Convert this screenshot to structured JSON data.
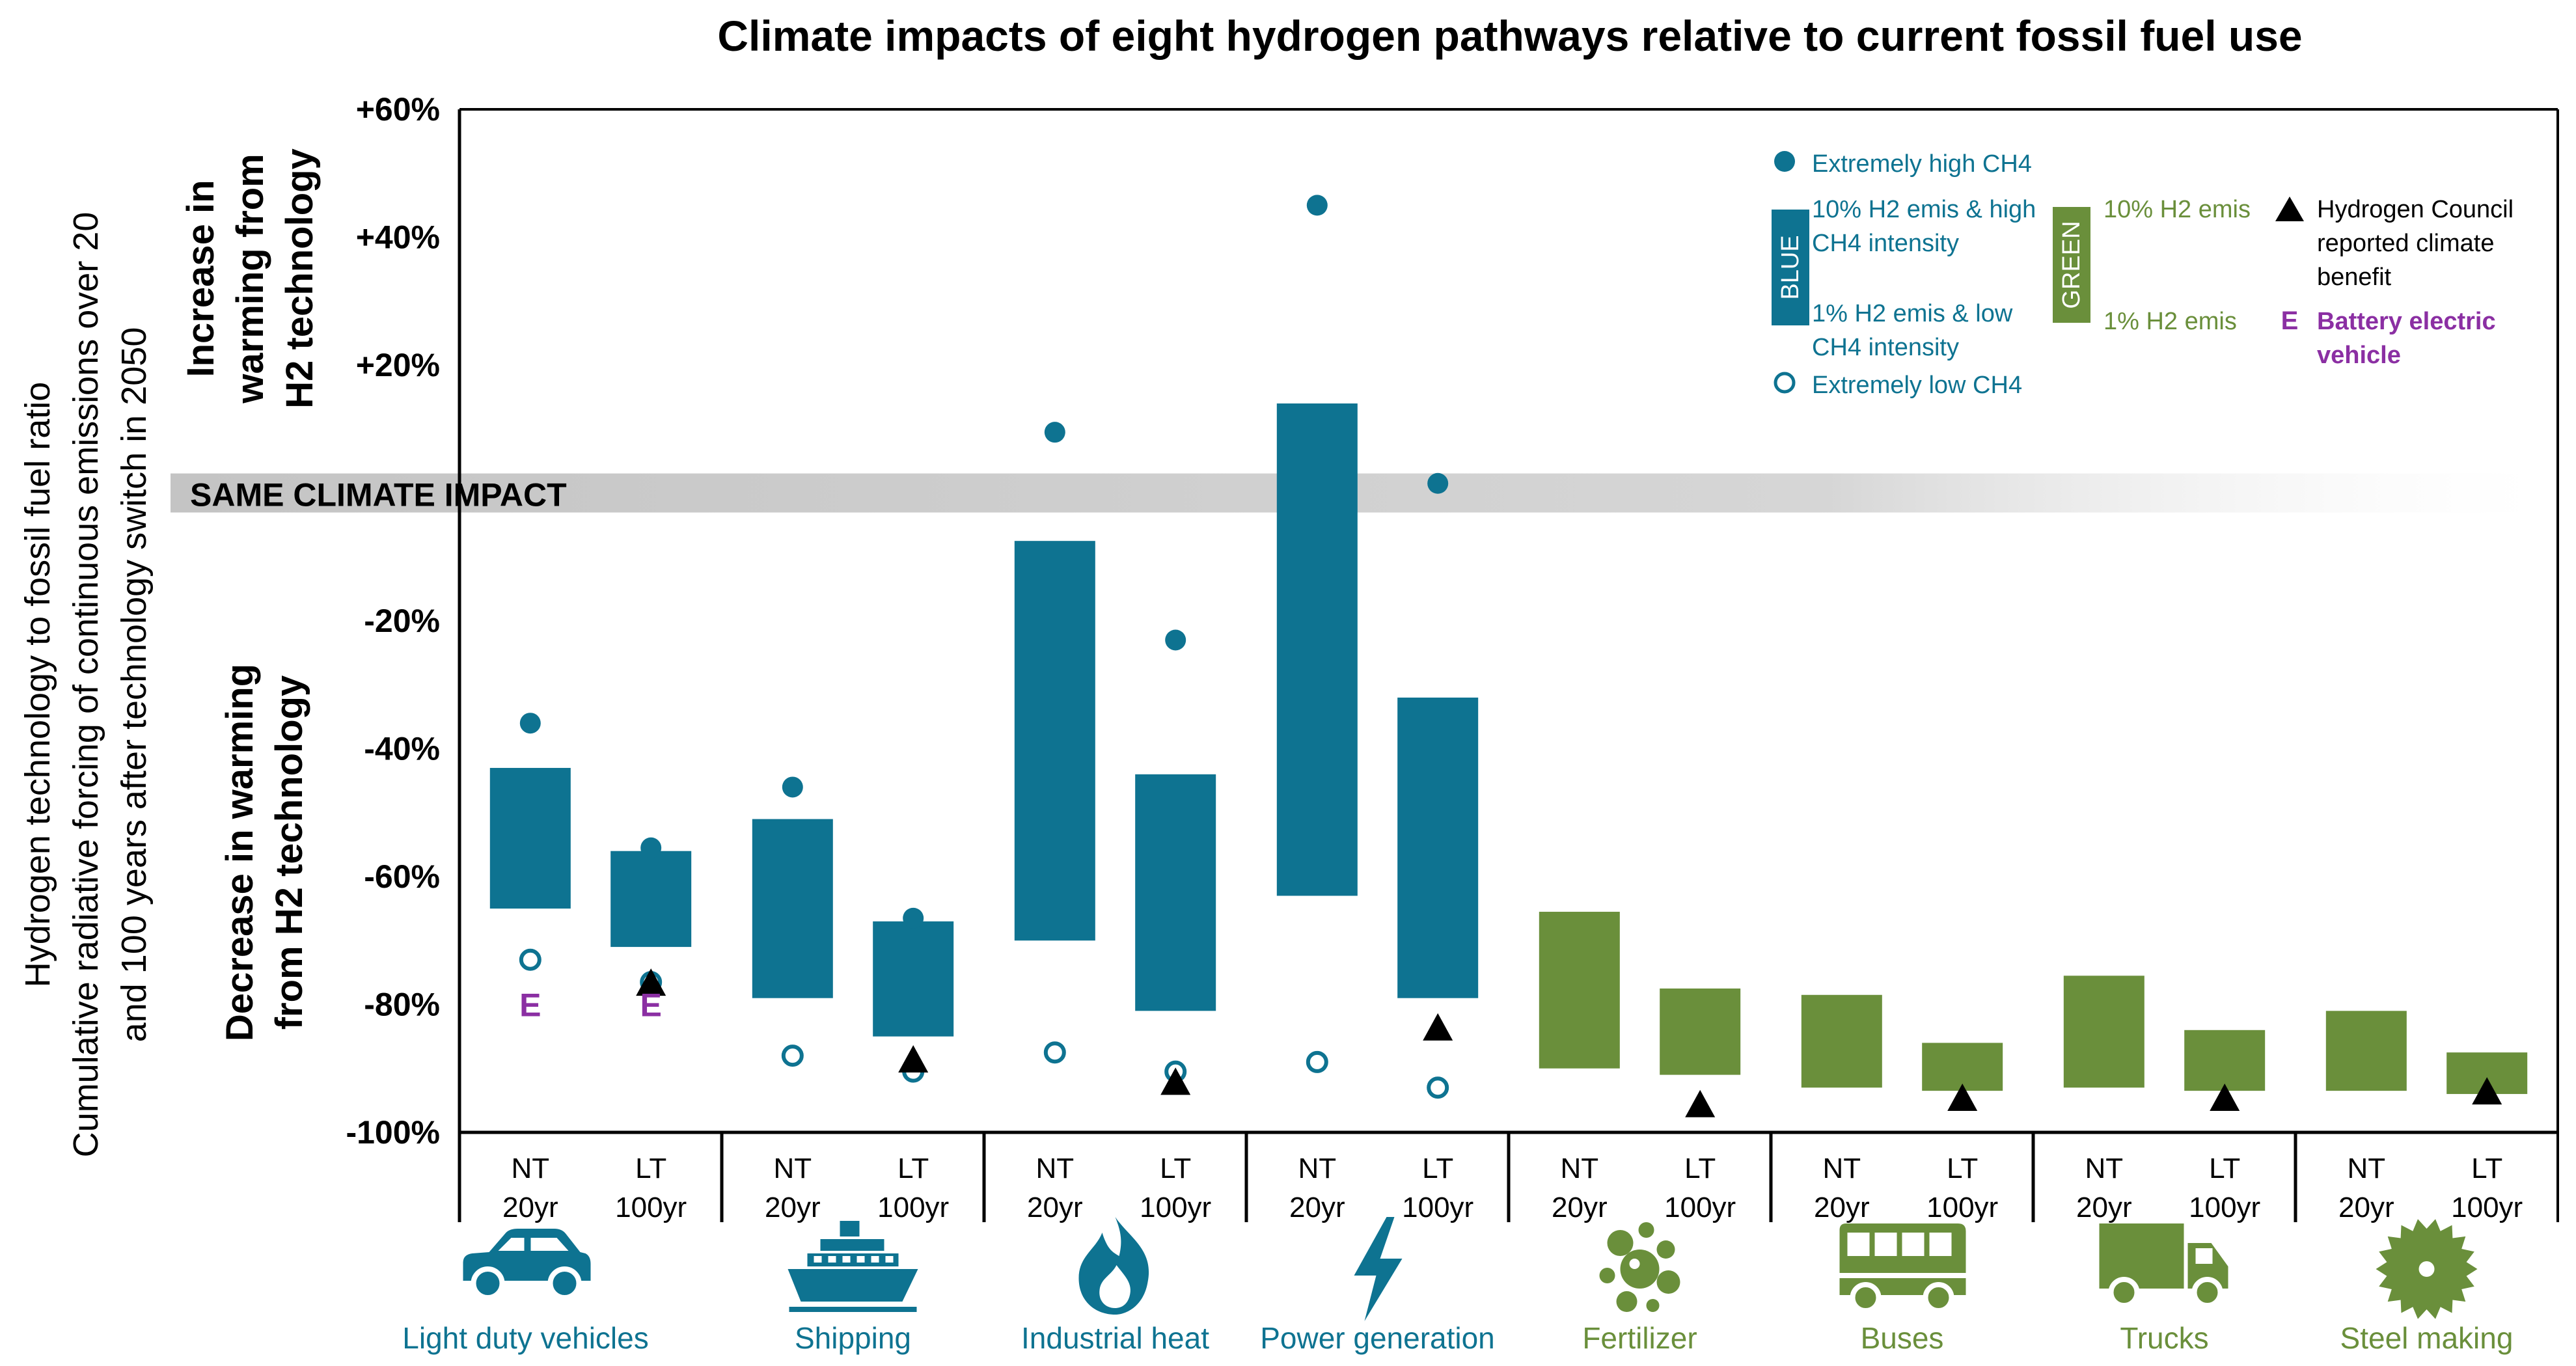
{
  "chart_data": {
    "type": "bar",
    "title": "Climate impacts of eight hydrogen pathways relative to current fossil fuel use",
    "ylabel": "Hydrogen technology to fossil fuel ratio",
    "ylabel_sub_1": "Cumulative radiative forcing of continuous emissions over 20",
    "ylabel_sub_2": "and 100 years after technology switch in 2050",
    "increase_label": [
      "Increase in",
      "warming from",
      "H2 technology"
    ],
    "decrease_label": [
      "Decrease in warming",
      "from H2 technology"
    ],
    "same_impact_label": "SAME CLIMATE IMPACT",
    "ylim": [
      -100,
      60
    ],
    "yticks": [
      "+60%",
      "+40%",
      "+20%",
      "-20%",
      "-40%",
      "-60%",
      "-80%",
      "-100%"
    ],
    "ytick_values": [
      60,
      40,
      20,
      -20,
      -40,
      -60,
      -80,
      -100
    ],
    "colors": {
      "blue": "#0e7391",
      "green": "#6a8f3b",
      "purple": "#8b2fa3",
      "band": "#cccccc",
      "black": "#000000"
    },
    "sectors": [
      {
        "name": "Light duty vehicles",
        "icon": "car-icon",
        "color": "blue"
      },
      {
        "name": "Shipping",
        "icon": "ship-icon",
        "color": "blue"
      },
      {
        "name": "Industrial heat",
        "icon": "flame-icon",
        "color": "blue"
      },
      {
        "name": "Power generation",
        "icon": "lightning-icon",
        "color": "blue"
      },
      {
        "name": "Fertilizer",
        "icon": "fertilizer-icon",
        "color": "green"
      },
      {
        "name": "Buses",
        "icon": "bus-icon",
        "color": "green"
      },
      {
        "name": "Trucks",
        "icon": "truck-icon",
        "color": "green"
      },
      {
        "name": "Steel making",
        "icon": "sawblade-icon",
        "color": "green"
      }
    ],
    "timeframe_labels": [
      {
        "top": "NT",
        "bottom": "20yr"
      },
      {
        "top": "LT",
        "bottom": "100yr"
      }
    ],
    "bars": [
      {
        "sector": 0,
        "t": 0,
        "low": -65,
        "high": -43,
        "extreme_high": -36,
        "extreme_low": -73,
        "ev": true
      },
      {
        "sector": 0,
        "t": 1,
        "low": -71,
        "high": -56,
        "extreme_high": -55.5,
        "extreme_low": -76.5,
        "hc": -76.5,
        "ev": true
      },
      {
        "sector": 1,
        "t": 0,
        "low": -79,
        "high": -51,
        "extreme_high": -46,
        "extreme_low": -88
      },
      {
        "sector": 1,
        "t": 1,
        "low": -85,
        "high": -67,
        "extreme_high": -66.5,
        "extreme_low": -90.5,
        "hc": -88.5
      },
      {
        "sector": 2,
        "t": 0,
        "low": -70,
        "high": -7.5,
        "extreme_high": 9.5,
        "extreme_low": -87.5
      },
      {
        "sector": 2,
        "t": 1,
        "low": -81,
        "high": -44,
        "extreme_high": -23,
        "extreme_low": -90.5,
        "hc": -92
      },
      {
        "sector": 3,
        "t": 0,
        "low": -63,
        "high": 14,
        "extreme_high": 45,
        "extreme_low": -89
      },
      {
        "sector": 3,
        "t": 1,
        "low": -79,
        "high": -32,
        "extreme_high": 1.5,
        "extreme_low": -93,
        "hc": -83.5
      },
      {
        "sector": 4,
        "t": 0,
        "low": -90,
        "high": -65.5
      },
      {
        "sector": 4,
        "t": 1,
        "low": -91,
        "high": -77.5,
        "hc": -95.5
      },
      {
        "sector": 5,
        "t": 0,
        "low": -93,
        "high": -78.5
      },
      {
        "sector": 5,
        "t": 1,
        "low": -93.5,
        "high": -86,
        "hc": -94.5
      },
      {
        "sector": 6,
        "t": 0,
        "low": -93,
        "high": -75.5
      },
      {
        "sector": 6,
        "t": 1,
        "low": -93.5,
        "high": -84,
        "hc": -94.5
      },
      {
        "sector": 7,
        "t": 0,
        "low": -93.5,
        "high": -81
      },
      {
        "sector": 7,
        "t": 1,
        "low": -94,
        "high": -87.5,
        "hc": -93.5
      }
    ],
    "ev_marker": "E",
    "legend": {
      "extreme_high": "Extremely high CH4",
      "blue_title": "BLUE",
      "blue_high": [
        "10% H2 emis & high",
        "CH4 intensity"
      ],
      "blue_low": [
        "1% H2 emis & low",
        "CH4 intensity"
      ],
      "extreme_low": "Extremely low CH4",
      "green_title": "GREEN",
      "green_high": "10% H2 emis",
      "green_low": "1% H2 emis",
      "hc": [
        "Hydrogen Council",
        "reported climate",
        "benefit"
      ],
      "ev_symbol": "E",
      "ev": [
        "Battery electric",
        "vehicle"
      ]
    }
  }
}
